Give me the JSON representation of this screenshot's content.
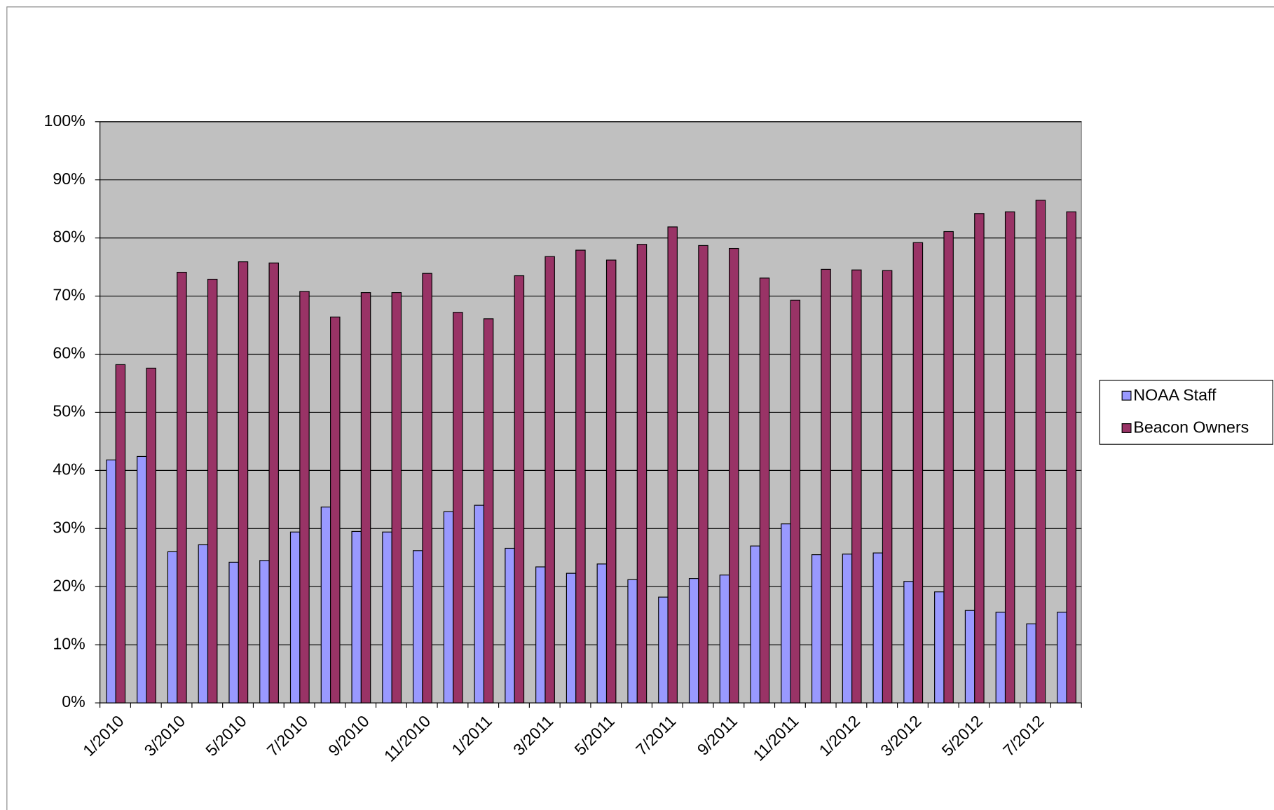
{
  "chart_data": {
    "type": "bar",
    "categories": [
      "1/2010",
      null,
      "3/2010",
      null,
      "5/2010",
      null,
      "7/2010",
      null,
      "9/2010",
      null,
      "11/2010",
      null,
      "1/2011",
      null,
      "3/2011",
      null,
      "5/2011",
      null,
      "7/2011",
      null,
      "9/2011",
      null,
      "11/2011",
      null,
      "1/2012",
      null,
      "3/2012",
      null,
      "5/2012",
      null,
      "7/2012",
      null
    ],
    "series": [
      {
        "name": "NOAA Staff",
        "color": "#9999ff",
        "values": [
          41.8,
          42.4,
          26,
          27.2,
          24.2,
          24.5,
          29.4,
          33.7,
          29.5,
          29.4,
          26.2,
          32.9,
          34,
          26.6,
          23.4,
          22.3,
          23.9,
          21.2,
          18.2,
          21.4,
          22,
          27,
          30.8,
          25.5,
          25.6,
          25.8,
          20.9,
          19.1,
          15.9,
          15.6,
          13.6,
          15.6
        ]
      },
      {
        "name": "Beacon Owners",
        "color": "#993366",
        "values": [
          58.2,
          57.6,
          74.1,
          72.9,
          75.9,
          75.7,
          70.8,
          66.4,
          70.6,
          70.6,
          73.9,
          67.2,
          66.1,
          73.5,
          76.8,
          77.9,
          76.2,
          78.9,
          81.9,
          78.7,
          78.2,
          73.1,
          69.3,
          74.6,
          74.5,
          74.4,
          79.2,
          81.1,
          84.2,
          84.5,
          86.5,
          84.5
        ]
      }
    ],
    "ylim": [
      0,
      100
    ],
    "yticks": [
      {
        "value": 0,
        "label": "0%"
      },
      {
        "value": 10,
        "label": "10%"
      },
      {
        "value": 20,
        "label": "20%"
      },
      {
        "value": 30,
        "label": "30%"
      },
      {
        "value": 40,
        "label": "40%"
      },
      {
        "value": 50,
        "label": "50%"
      },
      {
        "value": 60,
        "label": "60%"
      },
      {
        "value": 70,
        "label": "70%"
      },
      {
        "value": 80,
        "label": "80%"
      },
      {
        "value": 90,
        "label": "90%"
      },
      {
        "value": 100,
        "label": "100%"
      }
    ],
    "grid": true,
    "plot_background": "#c0c0c0",
    "legend": "right"
  }
}
